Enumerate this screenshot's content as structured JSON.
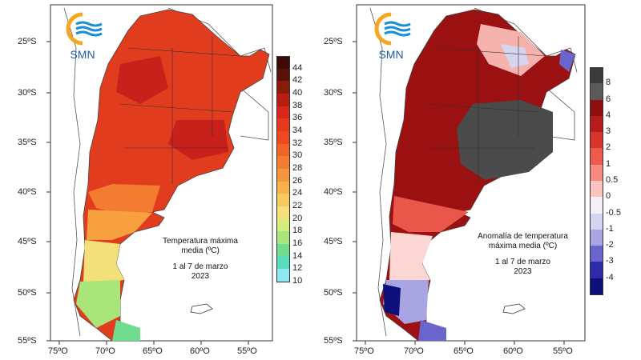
{
  "logo": {
    "text": "SMN",
    "accent": "#f5a623",
    "wave": "#1a8fd8"
  },
  "left_map": {
    "caption_line1": "Temperatura máxima",
    "caption_line2": "media (ºC)",
    "caption_line3": "1 al 7 de marzo",
    "caption_line4": "2023",
    "legend": [
      "44",
      "42",
      "40",
      "38",
      "36",
      "34",
      "32",
      "30",
      "28",
      "26",
      "24",
      "22",
      "20",
      "18",
      "16",
      "14",
      "12",
      "10"
    ],
    "legend_colors": [
      "#3b0c05",
      "#5a1208",
      "#8a1a0c",
      "#b81c12",
      "#d7261a",
      "#e6381d",
      "#ee4a22",
      "#f26329",
      "#f47c31",
      "#f6963c",
      "#f7b04a",
      "#f8c95c",
      "#f4e07a",
      "#d8ec7c",
      "#a9e57a",
      "#6fdc8e",
      "#58dcc0",
      "#8ee8f4"
    ]
  },
  "right_map": {
    "caption_line1": "Anomalía de temperatura",
    "caption_line2": "máxima media (ºC)",
    "caption_line3": "1 al 7 de marzo",
    "caption_line4": "2023",
    "legend": [
      "8",
      "6",
      "4",
      "3",
      "2",
      "1",
      "0.5",
      "0",
      "-0.5",
      "-1",
      "-2",
      "-3",
      "-4"
    ],
    "legend_colors": [
      "#3a3a3a",
      "#5a5a5a",
      "#8e0f0f",
      "#b71c1c",
      "#d8332c",
      "#ee5a4c",
      "#f78b82",
      "#fbc4be",
      "#f4f0f6",
      "#d7d4f0",
      "#a9a5e3",
      "#6a65cc",
      "#2e2ba9",
      "#0d0f7a"
    ]
  },
  "lat_labels": [
    "25ºS",
    "30ºS",
    "35ºS",
    "40ºS",
    "45ºS",
    "50ºS",
    "55ºS"
  ],
  "lon_labels": [
    "75ºO",
    "70ºO",
    "65ºO",
    "60ºO",
    "55ºO"
  ]
}
